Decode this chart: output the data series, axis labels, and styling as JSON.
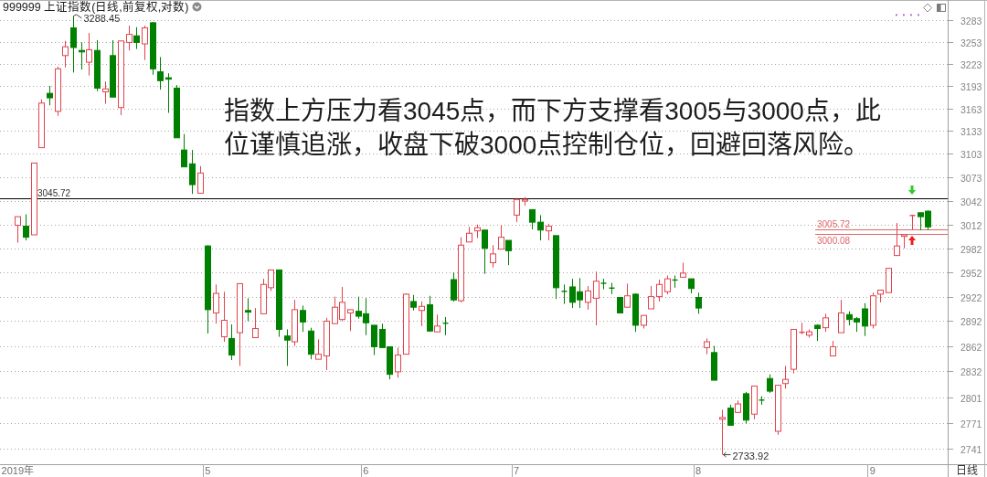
{
  "chart_data": {
    "type": "candlestick",
    "title": "999999 上证指数(日线,前复权,对数)",
    "xlabel": "日线",
    "categories": [
      "2019年",
      null,
      null,
      null,
      null,
      null,
      null,
      null,
      null,
      null,
      null,
      null,
      null,
      null,
      null,
      null,
      null,
      null,
      null,
      null,
      null,
      null,
      null,
      null,
      "5",
      null,
      null,
      null,
      null,
      null,
      null,
      null,
      null,
      null,
      null,
      null,
      null,
      null,
      null,
      null,
      null,
      null,
      null,
      null,
      "6",
      null,
      null,
      null,
      null,
      null,
      null,
      null,
      null,
      null,
      null,
      null,
      null,
      null,
      null,
      null,
      null,
      null,
      null,
      "7",
      null,
      null,
      null,
      null,
      null,
      null,
      null,
      null,
      null,
      null,
      null,
      null,
      null,
      null,
      null,
      null,
      null,
      null,
      null,
      null,
      null,
      null,
      "8",
      null,
      null,
      null,
      null,
      null,
      null,
      null,
      null,
      null,
      null,
      null,
      null,
      null,
      null,
      null,
      null,
      null,
      null,
      null,
      null,
      null,
      "9",
      null,
      null,
      null,
      null,
      null,
      null,
      null
    ],
    "ohlc": [
      [
        3011,
        3022,
        2989,
        3022
      ],
      [
        3010,
        3025,
        2992,
        2996
      ],
      [
        2999,
        3091,
        2999,
        3091
      ],
      [
        3111,
        3175,
        3111,
        3170
      ],
      [
        3183,
        3193,
        3167,
        3177
      ],
      [
        3159,
        3219,
        3153,
        3216
      ],
      [
        3234,
        3254,
        3218,
        3246
      ],
      [
        3272,
        3288.45,
        3211,
        3245
      ],
      [
        3241,
        3252,
        3215,
        3239
      ],
      [
        3225,
        3265,
        3207,
        3242
      ],
      [
        3241,
        3255,
        3186,
        3190
      ],
      [
        3185,
        3199,
        3169,
        3189
      ],
      [
        3234,
        3255,
        3178,
        3178
      ],
      [
        3164,
        3254,
        3154,
        3254
      ],
      [
        3252,
        3275,
        3241,
        3263
      ],
      [
        3261,
        3273,
        3243,
        3252
      ],
      [
        3250,
        3275,
        3228,
        3272
      ],
      [
        3279,
        3280,
        3208,
        3216
      ],
      [
        3212,
        3232,
        3188,
        3200
      ],
      [
        3204,
        3210,
        3157,
        3202
      ],
      [
        3190,
        3194,
        3124,
        3124
      ],
      [
        3108,
        3129,
        3086,
        3086
      ],
      [
        3090,
        3108,
        3051,
        3063
      ],
      [
        3052,
        3087,
        3052,
        3078
      ],
      [
        2985,
        2986,
        2877,
        2906
      ],
      [
        2902,
        2937,
        2889,
        2926
      ],
      [
        2873,
        2928,
        2867,
        2893
      ],
      [
        2871,
        2888,
        2845,
        2851
      ],
      [
        2878,
        2938,
        2838,
        2938
      ],
      [
        2905,
        2920,
        2892,
        2903
      ],
      [
        2872,
        2908,
        2872,
        2883
      ],
      [
        2901,
        2944,
        2901,
        2937
      ],
      [
        2933,
        2955,
        2929,
        2955
      ],
      [
        2955,
        2955,
        2873,
        2882
      ],
      [
        2874,
        2882,
        2838,
        2869
      ],
      [
        2867,
        2918,
        2862,
        2906
      ],
      [
        2905,
        2911,
        2879,
        2891
      ],
      [
        2880,
        2884,
        2846,
        2852
      ],
      [
        2846,
        2870,
        2846,
        2852
      ],
      [
        2850,
        2896,
        2833,
        2892
      ],
      [
        2889,
        2922,
        2889,
        2909
      ],
      [
        2894,
        2934,
        2892,
        2915
      ],
      [
        2902,
        2906,
        2880,
        2906
      ],
      [
        2904,
        2922,
        2895,
        2898
      ],
      [
        2901,
        2920,
        2875,
        2890
      ],
      [
        2887,
        2887,
        2851,
        2861
      ],
      [
        2882,
        2889,
        2860,
        2860
      ],
      [
        2861,
        2861,
        2822,
        2828
      ],
      [
        2831,
        2860,
        2824,
        2851
      ],
      [
        2852,
        2926,
        2852,
        2925
      ],
      [
        2916,
        2924,
        2905,
        2909
      ],
      [
        2905,
        2916,
        2886,
        2910
      ],
      [
        2912,
        2923,
        2879,
        2880
      ],
      [
        2879,
        2900,
        2879,
        2886
      ],
      [
        2890,
        2897,
        2875,
        2889
      ],
      [
        2943,
        2952,
        2916,
        2918
      ],
      [
        2917,
        2996,
        2915,
        2986
      ],
      [
        2990,
        3009,
        2990,
        3001
      ],
      [
        3004,
        3012,
        2995,
        3008
      ],
      [
        3005,
        3005,
        2950,
        2982
      ],
      [
        2964,
        2986,
        2958,
        2975
      ],
      [
        2981,
        3011,
        2981,
        2996
      ],
      [
        2992,
        2992,
        2961,
        2979
      ],
      [
        3024,
        3046,
        3015,
        3044
      ],
      [
        3042,
        3047,
        3036,
        3044
      ],
      [
        3031,
        3031,
        3006,
        3015
      ],
      [
        3015,
        3024,
        2992,
        3005
      ],
      [
        3004,
        3013,
        2992,
        3010
      ],
      [
        2998,
        2998,
        2919,
        2933
      ],
      [
        2929,
        2937,
        2913,
        2928
      ],
      [
        2934,
        2944,
        2908,
        2915
      ],
      [
        2928,
        2945,
        2908,
        2918
      ],
      [
        2915,
        2935,
        2906,
        2929
      ],
      [
        2920,
        2953,
        2887,
        2941
      ],
      [
        2939,
        2944,
        2931,
        2938
      ],
      [
        2933,
        2939,
        2925,
        2932
      ],
      [
        2921,
        2921,
        2902,
        2902
      ],
      [
        2909,
        2938,
        2909,
        2923
      ],
      [
        2925,
        2926,
        2879,
        2887
      ],
      [
        2887,
        2899,
        2883,
        2899
      ],
      [
        2907,
        2935,
        2907,
        2922
      ],
      [
        2922,
        2943,
        2916,
        2937
      ],
      [
        2928,
        2948,
        2925,
        2944
      ],
      [
        2943,
        2948,
        2933,
        2942
      ],
      [
        2946,
        2964,
        2946,
        2951
      ],
      [
        2944,
        2944,
        2926,
        2932
      ],
      [
        2921,
        2927,
        2901,
        2908
      ],
      [
        2860,
        2871,
        2852,
        2867
      ],
      [
        2854,
        2862,
        2821,
        2821
      ],
      [
        2775,
        2786,
        2733.92,
        2777
      ],
      [
        2788,
        2792,
        2768,
        2768
      ],
      [
        2783,
        2797,
        2783,
        2793
      ],
      [
        2805,
        2807,
        2770,
        2774
      ],
      [
        2781,
        2814,
        2775,
        2814
      ],
      [
        2798,
        2802,
        2792,
        2797
      ],
      [
        2823,
        2828,
        2806,
        2808
      ],
      [
        2761,
        2815,
        2757,
        2815
      ],
      [
        2817,
        2838,
        2811,
        2822
      ],
      [
        2834,
        2882,
        2829,
        2882
      ],
      [
        2878,
        2890,
        2876,
        2879
      ],
      [
        2875,
        2882,
        2872,
        2879
      ],
      [
        2887,
        2888,
        2868,
        2883
      ],
      [
        2884,
        2901,
        2879,
        2896
      ],
      [
        2850,
        2868,
        2850,
        2861
      ],
      [
        2878,
        2918,
        2878,
        2902
      ],
      [
        2900,
        2904,
        2887,
        2894
      ],
      [
        2895,
        2897,
        2879,
        2891
      ],
      [
        2907,
        2914,
        2874,
        2886
      ],
      [
        2887,
        2927,
        2883,
        2923
      ],
      [
        2925,
        2930,
        2915,
        2930
      ],
      [
        2927,
        2957,
        2927,
        2957
      ],
      [
        2973,
        3014,
        2973,
        2985
      ],
      [
        2997,
        2999,
        2982,
        2999
      ],
      [
        3023,
        3024,
        3005,
        3024
      ],
      [
        3027,
        3027,
        3005,
        3022
      ],
      [
        3029,
        3030,
        3005,
        3009
      ]
    ],
    "log": true,
    "ylim": [
      2723,
      3308
    ],
    "yticks": [
      3283,
      3253,
      3223,
      3193,
      3163,
      3133,
      3103,
      3073,
      3042,
      3012,
      2982,
      2952,
      2922,
      2892,
      2862,
      2832,
      2801,
      2771,
      2741
    ],
    "grid": "y",
    "ref_lines": [
      {
        "axis": "y",
        "value": 3045.72,
        "label": "3045.72",
        "color": "#000000"
      },
      {
        "axis": "y",
        "value": 3005.72,
        "label": "3005.72",
        "color": "#e06666"
      },
      {
        "axis": "y",
        "value": 3000.08,
        "label": "3000.08",
        "color": "#e06666"
      }
    ],
    "annotations": [
      "3288.45",
      "2733.92",
      "指数上方压力看3045点，而下方支撑看3005与3000点，此位谨慎追涨，收盘下破3000点控制仓位，回避回落风险。"
    ]
  }
}
